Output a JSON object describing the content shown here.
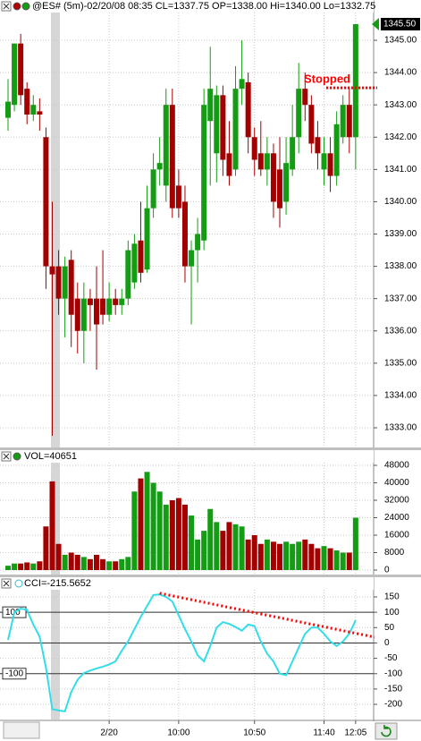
{
  "chart_data": [
    {
      "type": "candlestick",
      "title": "@ES# (5m)-02/20/08 08:35 CL=1337.75 OP=1338.00 Hi=1340.00 Lo=1332.75",
      "open": [
        1342.6,
        1343,
        1344.9,
        1343.5,
        1342.7,
        1342.8,
        1342,
        1338,
        1338,
        1337,
        1338.2,
        1337,
        1336,
        1337,
        1337,
        1337,
        1336.5,
        1337,
        1336.8,
        1337,
        1337.5,
        1338.8,
        1337.9,
        1339.8,
        1341,
        1340.5,
        1343,
        1340.5,
        1340,
        1338,
        1338.5,
        1338.8,
        1342.5,
        1341.5,
        1343.3,
        1341.5,
        1341,
        1343.5,
        1343.7,
        1342,
        1341.5,
        1341,
        1341.5,
        1341,
        1340,
        1341,
        1342,
        1343.5,
        1343,
        1342,
        1341,
        1341.5,
        1340.8,
        1342,
        1343,
        1342
      ],
      "high": [
        1343.8,
        1344.9,
        1345.2,
        1343.7,
        1343.3,
        1343.2,
        1342.3,
        1340,
        1338.5,
        1338.3,
        1338.5,
        1337.5,
        1337.5,
        1337.3,
        1338,
        1338.5,
        1337.5,
        1337.3,
        1337.3,
        1338.8,
        1339,
        1340,
        1340.5,
        1341.5,
        1342,
        1343.5,
        1343.5,
        1341,
        1340.5,
        1338.8,
        1339.5,
        1343.5,
        1344.8,
        1343.6,
        1343.6,
        1342.5,
        1344.2,
        1345,
        1344,
        1342.3,
        1342.5,
        1342,
        1341.8,
        1342,
        1342,
        1343,
        1344.3,
        1344,
        1343.3,
        1342.5,
        1342,
        1342,
        1342.8,
        1343.3,
        1343.5,
        1345.5
      ],
      "low": [
        1342.2,
        1342.8,
        1343,
        1342.4,
        1342.5,
        1342.2,
        1337.3,
        1332.75,
        1336.5,
        1335.8,
        1335.5,
        1335.3,
        1335,
        1336,
        1334.8,
        1336.2,
        1336.3,
        1336.5,
        1336.5,
        1336.8,
        1337.3,
        1337.5,
        1337.8,
        1339.5,
        1340.5,
        1340,
        1339.5,
        1339.5,
        1337.5,
        1336.2,
        1337.5,
        1338.5,
        1340.5,
        1340.6,
        1340.8,
        1340.5,
        1340.8,
        1343,
        1341.5,
        1340.8,
        1340.8,
        1340.5,
        1339.5,
        1339.2,
        1339.6,
        1340.8,
        1341.5,
        1342.5,
        1341.5,
        1341,
        1340.5,
        1340.3,
        1340.5,
        1341.8,
        1341.5,
        1341
      ],
      "close": [
        1343.1,
        1344.9,
        1343.3,
        1342.7,
        1343,
        1342.7,
        1338,
        1337.75,
        1337,
        1338,
        1336.5,
        1336,
        1337,
        1336.8,
        1336.2,
        1336.5,
        1337,
        1336.8,
        1337,
        1338.5,
        1338.7,
        1337.8,
        1339.8,
        1341,
        1341.2,
        1343,
        1339.8,
        1339.8,
        1338,
        1338.5,
        1339,
        1343,
        1343.5,
        1343.3,
        1341.3,
        1340.8,
        1343.5,
        1343.8,
        1342,
        1341.3,
        1341,
        1341.5,
        1340,
        1339.8,
        1341.2,
        1342,
        1343.5,
        1343,
        1341.8,
        1341.5,
        1341.5,
        1340.8,
        1342.4,
        1343,
        1342,
        1345.5
      ],
      "up_color": "#149c14",
      "down_color": "#a30000",
      "ylim": [
        1332.39,
        1345.86
      ],
      "yticks": [
        {
          "value": 1333,
          "label": "1333.00"
        },
        {
          "value": 1334,
          "label": "1334.00"
        },
        {
          "value": 1335,
          "label": "1335.00"
        },
        {
          "value": 1336,
          "label": "1336.00"
        },
        {
          "value": 1337,
          "label": "1337.00"
        },
        {
          "value": 1338,
          "label": "1338.00"
        },
        {
          "value": 1339,
          "label": "1339.00"
        },
        {
          "value": 1340,
          "label": "1340.00"
        },
        {
          "value": 1341,
          "label": "1341.00"
        },
        {
          "value": 1342,
          "label": "1342.00"
        },
        {
          "value": 1343,
          "label": "1343.00"
        },
        {
          "value": 1344,
          "label": "1344.00"
        },
        {
          "value": 1345,
          "label": "1345.00"
        }
      ],
      "grid": true,
      "last_price": {
        "value": 1345.5,
        "label": "1345.50"
      },
      "annotation": {
        "text": "Stopped",
        "value": 1343.53,
        "color": "#ff0000"
      }
    },
    {
      "type": "bar",
      "title": "VOL=40651",
      "values": [
        2000,
        3000,
        3000,
        3500,
        3000,
        4000,
        20000,
        40651,
        12000,
        7000,
        8000,
        7000,
        6000,
        5000,
        7000,
        5000,
        4000,
        4000,
        5000,
        6000,
        36000,
        42000,
        45000,
        40000,
        36000,
        30000,
        32000,
        33000,
        30000,
        25000,
        14000,
        18000,
        28000,
        22000,
        18000,
        22000,
        21000,
        20000,
        14000,
        16000,
        12000,
        14000,
        13000,
        12000,
        13000,
        12000,
        13000,
        14000,
        12000,
        10000,
        11000,
        10000,
        9000,
        8000,
        8000,
        24000
      ],
      "ylim": [
        -2462,
        49231
      ],
      "yticks": [
        0,
        8000,
        16000,
        24000,
        32000,
        40000,
        48000
      ],
      "grid": true
    },
    {
      "type": "line",
      "title": "CCI=-215.5652",
      "color": "#33dde8",
      "values": [
        10,
        100,
        112,
        108,
        60,
        20,
        -80,
        -215.5652,
        -220,
        -223,
        -160,
        -120,
        -98,
        -90,
        -83,
        -77,
        -70,
        -60,
        -25,
        5,
        45,
        85,
        120,
        156,
        158,
        150,
        135,
        90,
        45,
        5,
        -40,
        -60,
        -10,
        50,
        68,
        62,
        52,
        40,
        60,
        55,
        5,
        -35,
        -60,
        -100,
        -105,
        -60,
        -15,
        30,
        50,
        50,
        30,
        5,
        -10,
        5,
        30,
        74
      ],
      "ylim": [
        -252.3,
        173.3
      ],
      "yticks": [
        150,
        100,
        50,
        0,
        -50,
        -100,
        -150,
        -200
      ],
      "grid": true,
      "levels": [
        100,
        -100
      ],
      "trendline": {
        "x": [
          24,
          58
        ],
        "values": [
          162,
          19
        ],
        "color": "#ff0000"
      },
      "categories": [
        null,
        null,
        null,
        null,
        null,
        null,
        null,
        null,
        null,
        null,
        null,
        null,
        null,
        null,
        null,
        null,
        "2/20",
        null,
        null,
        null,
        null,
        null,
        null,
        null,
        null,
        null,
        null,
        "10:00",
        null,
        null,
        null,
        null,
        null,
        null,
        null,
        null,
        null,
        null,
        null,
        "10:50",
        null,
        null,
        null,
        null,
        null,
        null,
        null,
        null,
        null,
        null,
        "11:40",
        null,
        null,
        null,
        null,
        "12:05"
      ]
    }
  ]
}
